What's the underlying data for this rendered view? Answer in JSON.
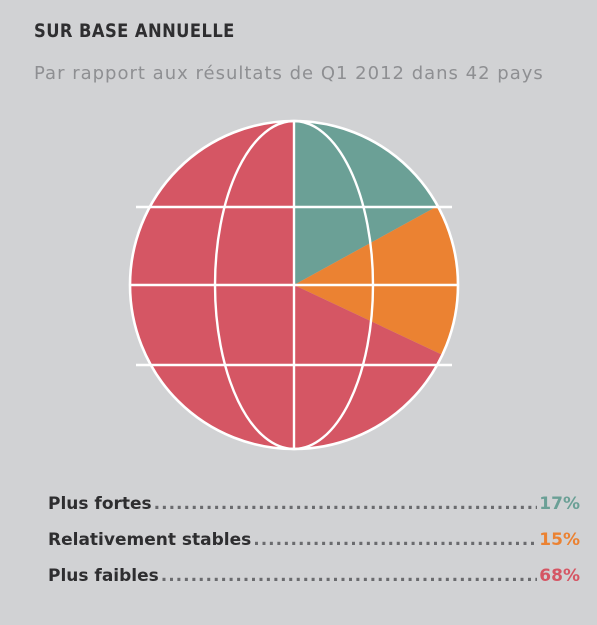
{
  "header": {
    "title": "SUR BASE ANNUELLE",
    "subtitle": "Par rapport aux résultats de Q1 2012 dans 42 pays"
  },
  "chart_data": {
    "type": "pie",
    "title": "SUR BASE ANNUELLE",
    "subtitle": "Par rapport aux résultats de Q1 2012 dans 42 pays",
    "categories": [
      "Plus fortes",
      "Relativement stables",
      "Plus faibles"
    ],
    "values": [
      17,
      15,
      68
    ],
    "unit": "%",
    "colors": [
      "#6ba096",
      "#eb8232",
      "#d55664"
    ],
    "legend_placement": "bottom",
    "style": "globe"
  },
  "legend": {
    "items": [
      {
        "label": "Plus fortes",
        "value": "17%",
        "color": "#6ba096"
      },
      {
        "label": "Relativement stables",
        "value": "15%",
        "color": "#eb8232"
      },
      {
        "label": "Plus faibles",
        "value": "68%",
        "color": "#d55664"
      }
    ]
  }
}
